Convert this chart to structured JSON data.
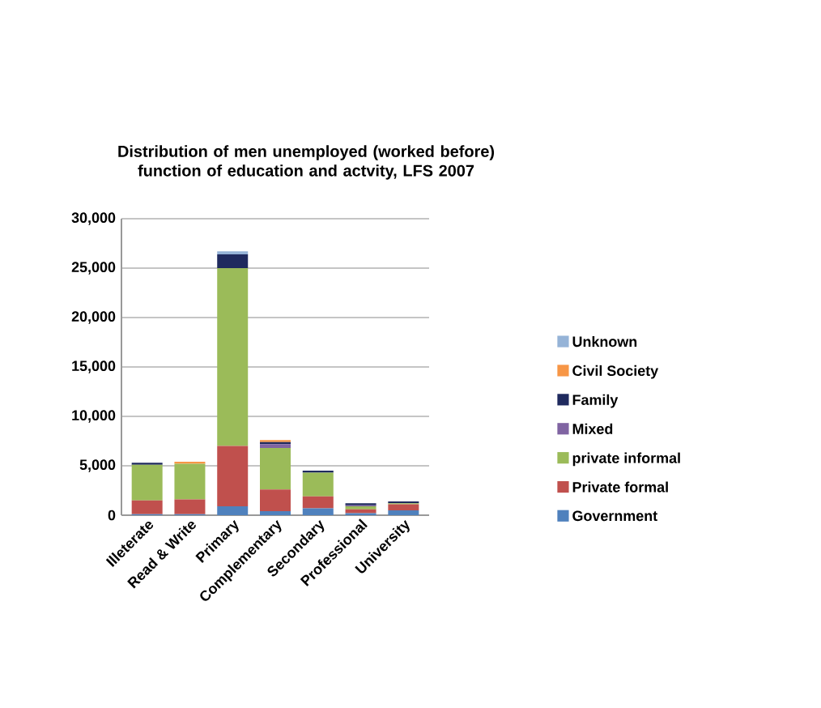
{
  "chart_data": {
    "type": "bar",
    "stacked": true,
    "title": "Distribution of men unemployed (worked before) function of education and actvity, LFS 2007",
    "categories": [
      "Illeterate",
      "Read & Write",
      "Primary",
      "Complementary",
      "Secondary",
      "Professional",
      "University"
    ],
    "series": [
      {
        "name": "Government",
        "color": "#4f81bd",
        "values": [
          100,
          100,
          900,
          400,
          700,
          200,
          500
        ]
      },
      {
        "name": "Private formal",
        "color": "#c0504d",
        "values": [
          1400,
          1500,
          6100,
          2200,
          1200,
          400,
          600
        ]
      },
      {
        "name": "private informal",
        "color": "#9bbb59",
        "values": [
          3600,
          3600,
          18000,
          4200,
          2400,
          300,
          100
        ]
      },
      {
        "name": "Mixed",
        "color": "#8064a2",
        "values": [
          null,
          null,
          null,
          400,
          null,
          100,
          null
        ]
      },
      {
        "name": "Family",
        "color": "#1f2a5e",
        "values": [
          200,
          null,
          1400,
          200,
          200,
          200,
          200
        ]
      },
      {
        "name": "Civil Society",
        "color": "#f79646",
        "values": [
          null,
          200,
          null,
          200,
          null,
          null,
          null
        ]
      },
      {
        "name": "Unknown",
        "color": "#95b3d7",
        "values": [
          null,
          null,
          300,
          null,
          null,
          null,
          null
        ]
      }
    ],
    "ylim": [
      0,
      30000
    ],
    "yticks": [
      {
        "value": 0,
        "label": "0"
      },
      {
        "value": 5000,
        "label": "5,000"
      },
      {
        "value": 10000,
        "label": "10,000"
      },
      {
        "value": 15000,
        "label": "15,000"
      },
      {
        "value": 20000,
        "label": "20,000"
      },
      {
        "value": 25000,
        "label": "25,000"
      },
      {
        "value": 30000,
        "label": "30,000"
      }
    ],
    "grid": "y",
    "legend": "right"
  }
}
